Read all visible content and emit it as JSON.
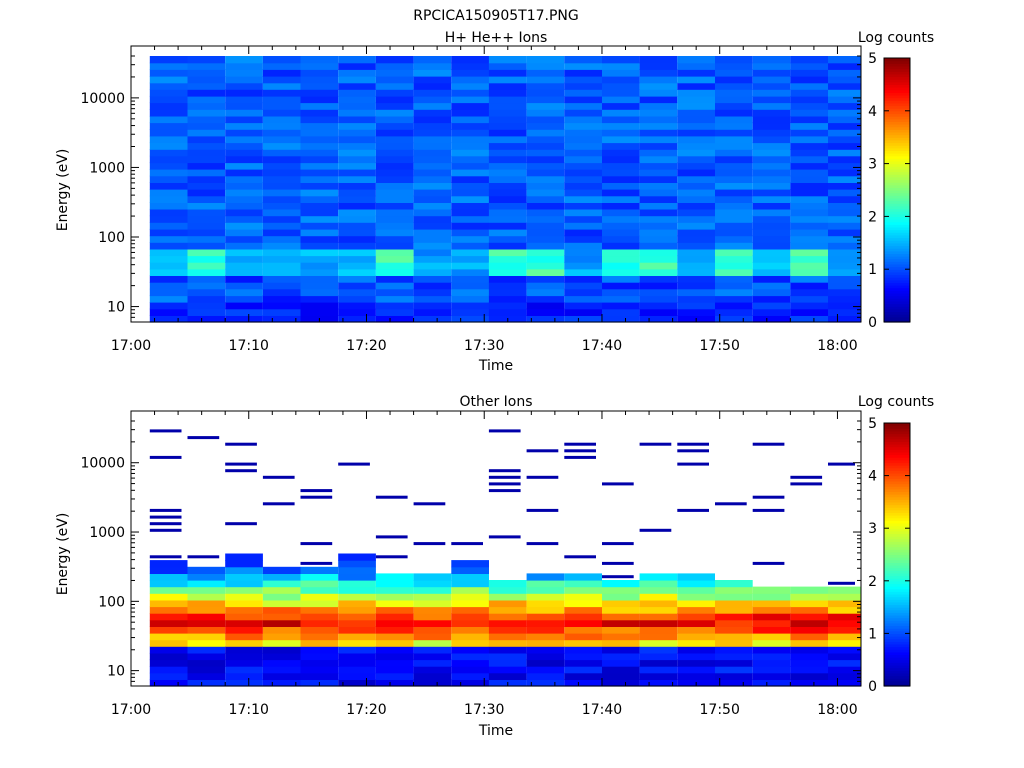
{
  "figure": {
    "title": "RPCICA150905T17.PNG"
  },
  "colormap": [
    "#00008f",
    "#0000ff",
    "#007fff",
    "#00ffff",
    "#7fff7f",
    "#ffff00",
    "#ff7f00",
    "#ff0000",
    "#7f0000"
  ],
  "chart_data": [
    {
      "type": "heatmap",
      "title": "H+ He++ Ions",
      "xlabel": "Time",
      "ylabel": "Energy (eV)",
      "colorbar_label": "Log counts",
      "colorbar_ticks": [
        "0",
        "1",
        "2",
        "3",
        "4",
        "5"
      ],
      "color_range": [
        0,
        5
      ],
      "x_ticks": [
        "17:00",
        "17:10",
        "17:20",
        "17:30",
        "17:40",
        "17:50",
        "18:00"
      ],
      "x_range_minutes": [
        0,
        62
      ],
      "y_scale": "log",
      "y_range": [
        6,
        40000
      ],
      "y_ticks": [
        "10",
        "100",
        "1000",
        "10000"
      ],
      "time_bins_minutes": [
        1.6,
        4.8,
        8.0,
        11.2,
        14.4,
        17.6,
        20.8,
        24.0,
        27.2,
        30.4,
        33.6,
        36.8,
        40.0,
        43.2,
        46.4,
        49.6,
        52.8,
        56.0,
        59.2,
        62.4
      ],
      "energy_bins": 40,
      "rows": [
        {
          "e_min": 6,
          "e_max": 12,
          "v": 0.6
        },
        {
          "e_min": 12,
          "e_max": 20,
          "v": 0.7
        },
        {
          "e_min": 20,
          "e_max": 30,
          "v": 0.9
        },
        {
          "e_min": 30,
          "e_max": 45,
          "v": 1.2
        },
        {
          "e_min": 45,
          "e_max": 65,
          "v": 1.6,
          "peak": [
            1,
            6,
            9,
            10,
            12,
            13,
            15,
            17
          ]
        },
        {
          "e_min": 65,
          "e_max": 100,
          "v": 1.1
        },
        {
          "e_min": 100,
          "e_max": 40000,
          "v": 1.0
        }
      ]
    },
    {
      "type": "heatmap",
      "title": "Other Ions",
      "xlabel": "Time",
      "ylabel": "Energy (eV)",
      "colorbar_label": "Log counts",
      "colorbar_ticks": [
        "0",
        "1",
        "2",
        "3",
        "4",
        "5"
      ],
      "color_range": [
        0,
        5
      ],
      "x_ticks": [
        "17:00",
        "17:10",
        "17:20",
        "17:30",
        "17:40",
        "17:50",
        "18:00"
      ],
      "x_range_minutes": [
        0,
        62
      ],
      "y_scale": "log",
      "y_range": [
        6,
        40000
      ],
      "y_ticks": [
        "10",
        "100",
        "1000",
        "10000"
      ],
      "peak_energy_ev": 50,
      "peak_log_counts": 4.5,
      "dense_upper_ev": [
        400,
        300,
        450,
        300,
        300,
        450,
        250,
        250,
        400,
        200,
        250,
        250,
        200,
        230,
        250,
        200,
        180,
        180,
        180,
        220
      ],
      "sparse_above_ev": 400
    }
  ]
}
